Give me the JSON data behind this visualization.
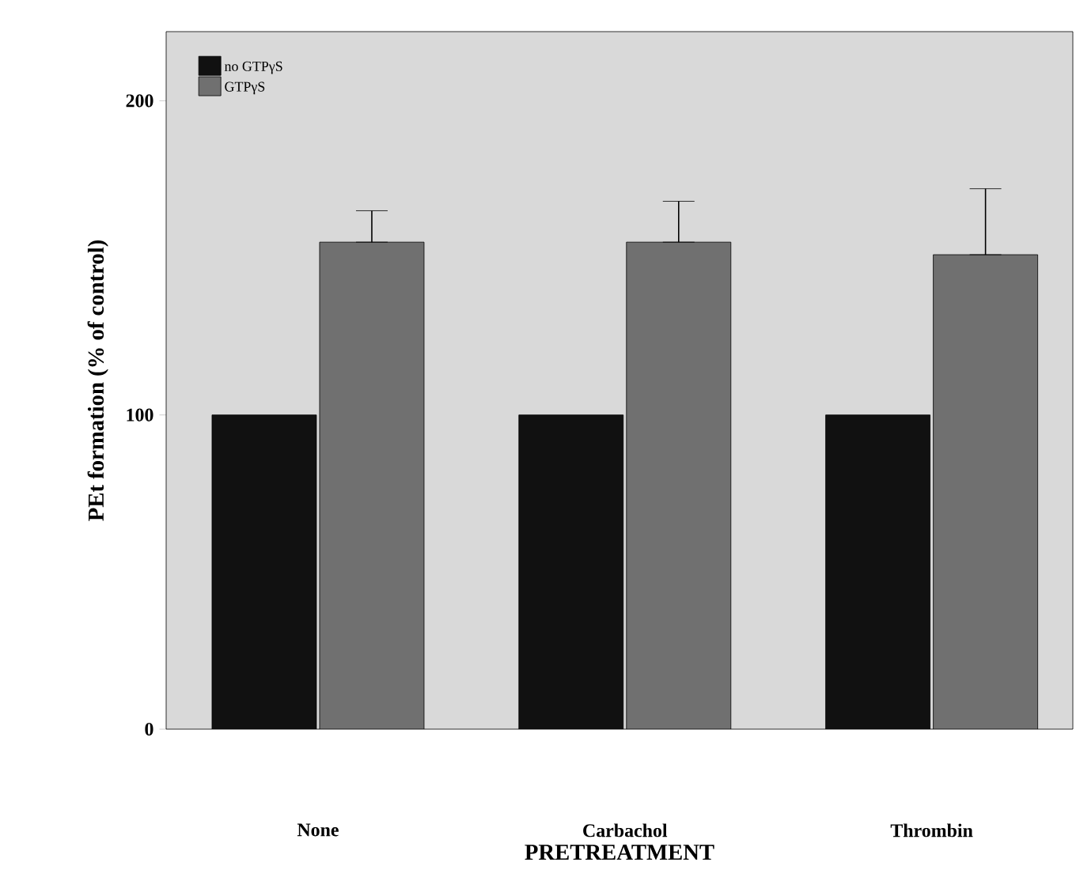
{
  "chart_data": {
    "type": "bar",
    "xlabel": "PRETREATMENT",
    "ylabel": "PEt formation (% of control)",
    "categories": [
      "None",
      "Carbachol",
      "Thrombin"
    ],
    "series": [
      {
        "name": "no GTPγS",
        "color": "#111111",
        "values": [
          100,
          100,
          100
        ]
      },
      {
        "name": "GTPγS",
        "color": "#707070",
        "values": [
          155,
          155,
          151
        ],
        "errors": [
          [
            155,
            165
          ],
          [
            155,
            168
          ],
          [
            151,
            172
          ]
        ]
      }
    ],
    "ylim": [
      0,
      222
    ],
    "yticks": [
      0,
      100,
      200
    ],
    "grid": false,
    "legend": "top left"
  }
}
